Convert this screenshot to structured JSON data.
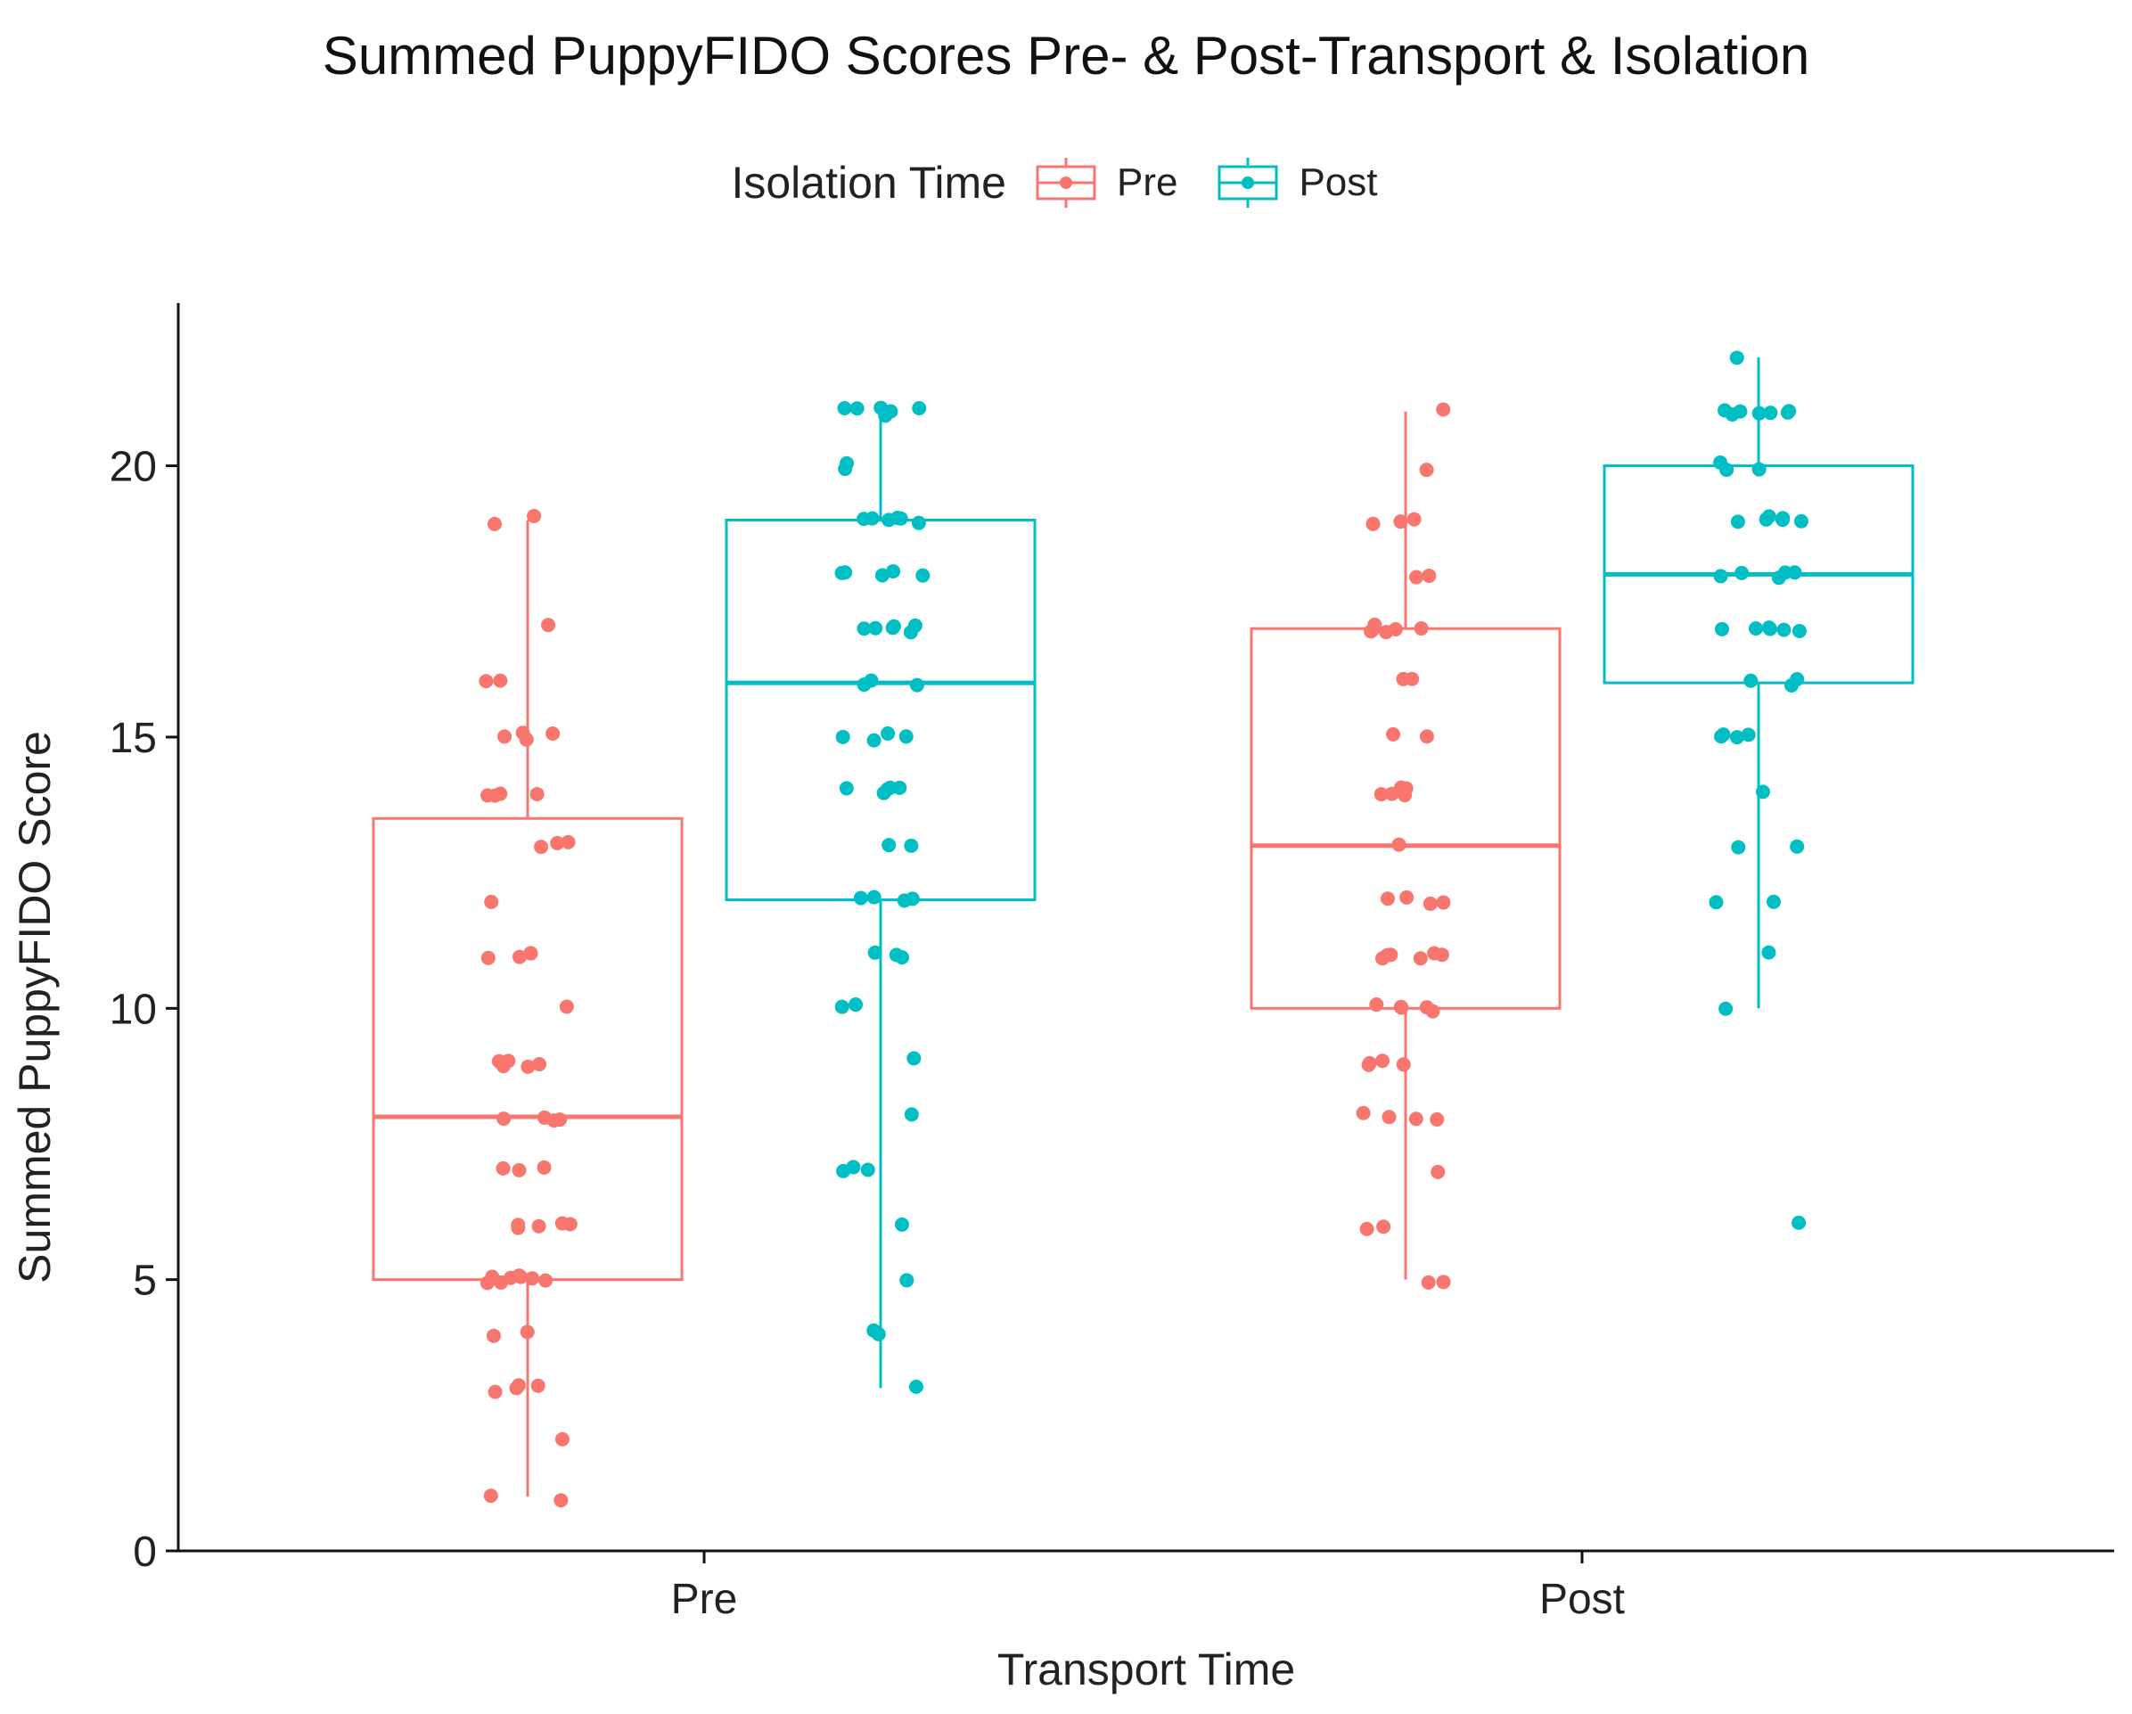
{
  "chart_data": {
    "type": "box",
    "title": "Summed PuppyFIDO Scores Pre- & Post-Transport & Isolation",
    "xlabel": "Transport Time",
    "ylabel": "Summed PuppyFIDO Score",
    "ylim": [
      0,
      23
    ],
    "yticks": [
      0,
      5,
      10,
      15,
      20
    ],
    "categories": [
      "Pre",
      "Post"
    ],
    "legend": {
      "title": "Isolation Time",
      "placement": "top-center",
      "entries": [
        {
          "label": "Pre",
          "color": "#F8766D"
        },
        {
          "label": "Post",
          "color": "#00BFC4"
        }
      ]
    },
    "groups": [
      {
        "transport": "Pre",
        "isolation": "Pre",
        "color": "#F8766D",
        "q1": 5,
        "median": 8,
        "q3": 13.5,
        "whisker_low": 1,
        "whisker_high": 19,
        "points": [
          1,
          1,
          2,
          3,
          3,
          3,
          3,
          4,
          4,
          5,
          5,
          5,
          5,
          5,
          5,
          5,
          5,
          6,
          6,
          6,
          6,
          6,
          7,
          7,
          7,
          8,
          8,
          8,
          8,
          9,
          9,
          9,
          9,
          9,
          10,
          11,
          11,
          11,
          11,
          12,
          13,
          13,
          13,
          14,
          14,
          14,
          14,
          15,
          15,
          15,
          15,
          16,
          16,
          17,
          19,
          19
        ]
      },
      {
        "transport": "Pre",
        "isolation": "Post",
        "color": "#00BFC4",
        "q1": 12,
        "median": 16,
        "q3": 19,
        "whisker_low": 3,
        "whisker_high": 21,
        "points": [
          3,
          4,
          4,
          5,
          6,
          7,
          7,
          7,
          8,
          9,
          10,
          10,
          11,
          11,
          11,
          12,
          12,
          12,
          12,
          13,
          13,
          14,
          14,
          14,
          14,
          14,
          15,
          15,
          15,
          15,
          16,
          16,
          16,
          17,
          17,
          17,
          17,
          17,
          17,
          18,
          18,
          18,
          18,
          18,
          19,
          19,
          19,
          19,
          19,
          19,
          20,
          20,
          21,
          21,
          21,
          21,
          21,
          21
        ]
      },
      {
        "transport": "Post",
        "isolation": "Pre",
        "color": "#F8766D",
        "q1": 10,
        "median": 13,
        "q3": 17,
        "whisker_low": 5,
        "whisker_high": 21,
        "points": [
          5,
          5,
          6,
          6,
          7,
          8,
          8,
          8,
          8,
          9,
          9,
          9,
          9,
          10,
          10,
          10,
          10,
          10,
          11,
          11,
          11,
          11,
          11,
          11,
          12,
          12,
          12,
          12,
          13,
          14,
          14,
          14,
          14,
          14,
          15,
          15,
          16,
          16,
          17,
          17,
          17,
          17,
          17,
          17,
          18,
          18,
          19,
          19,
          19,
          20,
          21
        ]
      },
      {
        "transport": "Post",
        "isolation": "Post",
        "color": "#00BFC4",
        "q1": 16,
        "median": 18,
        "q3": 20,
        "whisker_low": 10,
        "whisker_high": 22,
        "points": [
          6,
          10,
          11,
          12,
          12,
          13,
          13,
          14,
          15,
          15,
          15,
          15,
          16,
          16,
          16,
          17,
          17,
          17,
          17,
          17,
          17,
          18,
          18,
          18,
          18,
          18,
          19,
          19,
          19,
          19,
          19,
          19,
          20,
          20,
          20,
          21,
          21,
          21,
          21,
          21,
          21,
          21,
          22
        ]
      }
    ]
  }
}
